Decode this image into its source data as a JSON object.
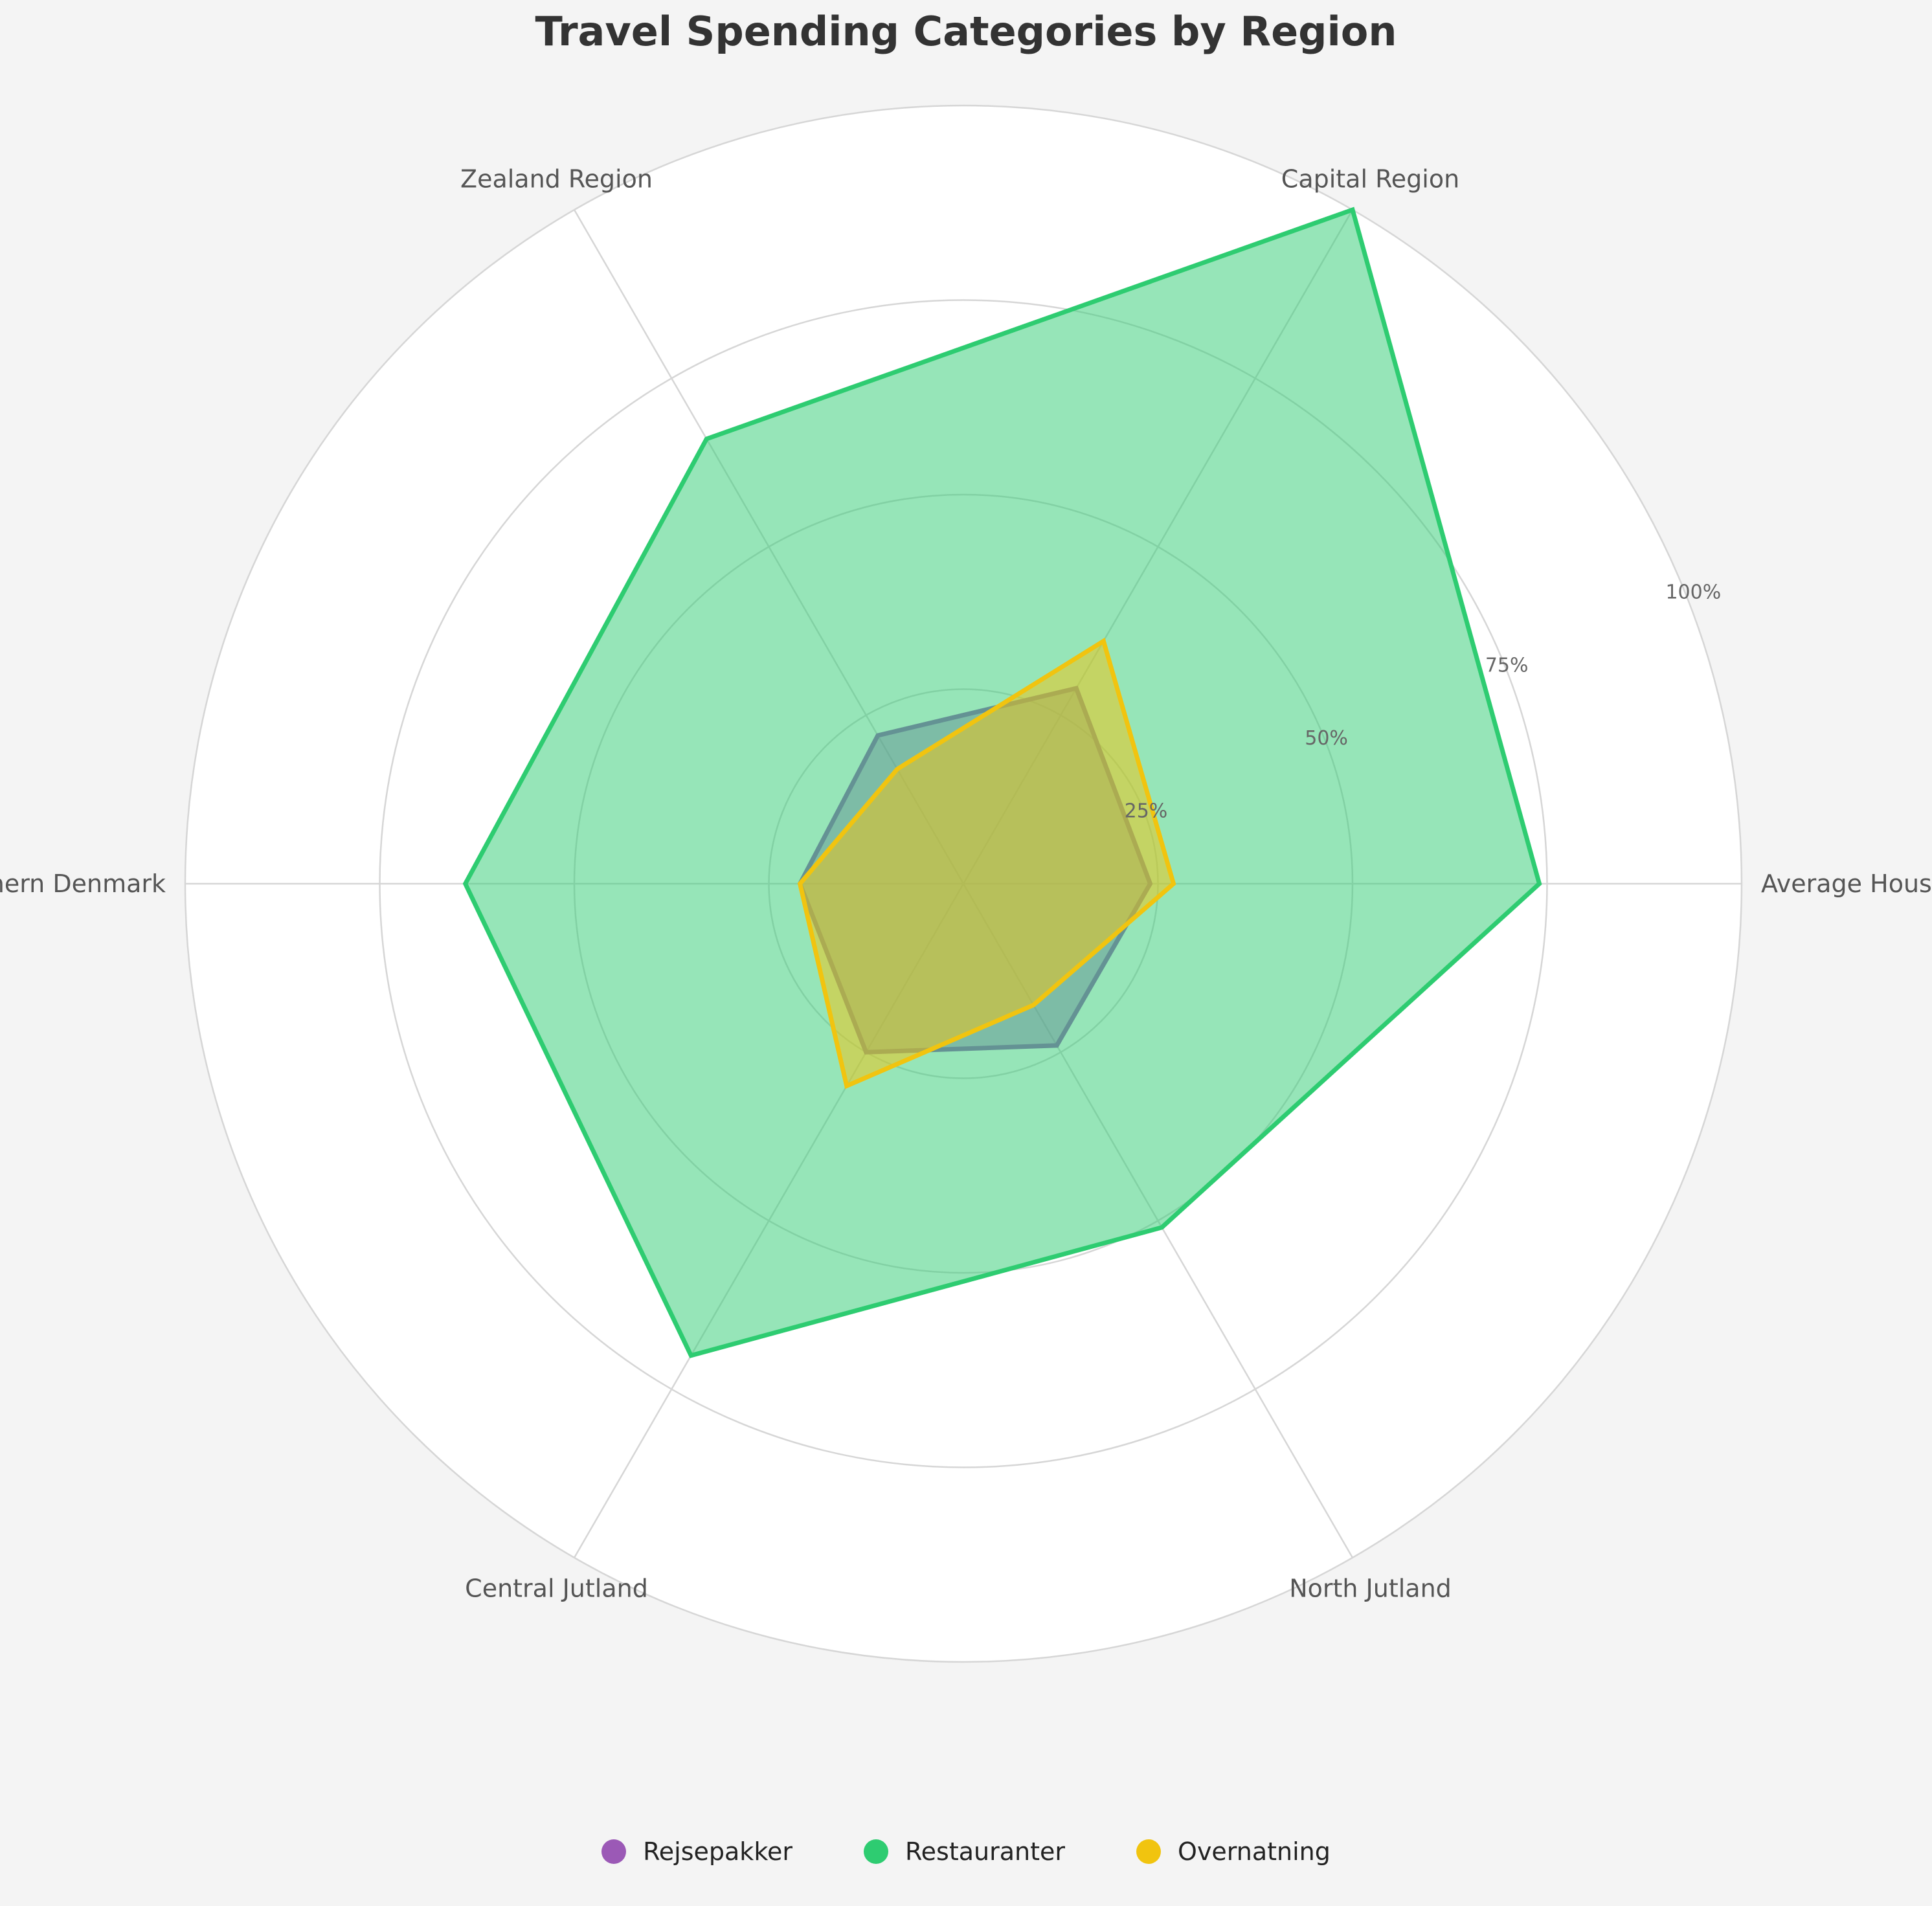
{
  "chart_data": {
    "type": "radar",
    "title": "Travel Spending Categories by Region",
    "categories": [
      "Average Household",
      "Capital Region",
      "Zealand Region",
      "Southern Denmark",
      "Central Jutland",
      "North Jutland"
    ],
    "radial_ticks": [
      "25%",
      "50%",
      "75%",
      "100%"
    ],
    "radial_tick_values": [
      25,
      50,
      75,
      100
    ],
    "rmax": 100,
    "grid": true,
    "legend_position": "bottom",
    "series": [
      {
        "name": "Rejsepakker",
        "color": "#9b59b6",
        "values": [
          24,
          29,
          22,
          21,
          25,
          24
        ]
      },
      {
        "name": "Restauranter",
        "color": "#2ecc71",
        "values": [
          74,
          100,
          66,
          64,
          70,
          51
        ]
      },
      {
        "name": "Overnatning",
        "color": "#f1c40f",
        "values": [
          27,
          36,
          17,
          21,
          30,
          18
        ]
      }
    ]
  }
}
